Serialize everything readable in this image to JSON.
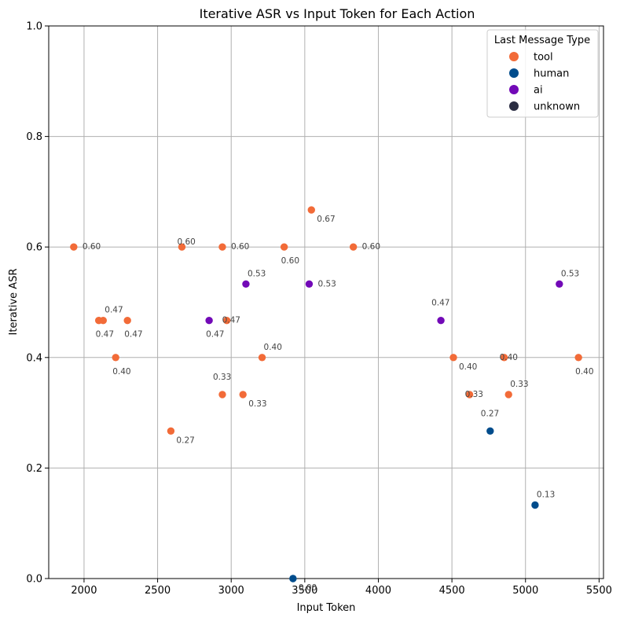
{
  "chart_data": {
    "type": "scatter",
    "title": "Iterative ASR vs Input Token for Each Action",
    "xlabel": "Input Token",
    "ylabel": "Iterative ASR",
    "xlim": [
      1760,
      5530
    ],
    "ylim": [
      0,
      1
    ],
    "xticks": [
      2000,
      2500,
      3000,
      3500,
      4000,
      4500,
      5000,
      5500
    ],
    "yticks": [
      0.0,
      0.2,
      0.4,
      0.6,
      0.8,
      1.0
    ],
    "grid": true,
    "legend": {
      "title": "Last Message Type",
      "placement": "top-right",
      "entries": [
        {
          "key": "tool",
          "label": "tool",
          "color": "#f26b38"
        },
        {
          "key": "human",
          "label": "human",
          "color": "#004c8c"
        },
        {
          "key": "ai",
          "label": "ai",
          "color": "#7209b7"
        },
        {
          "key": "unknown",
          "label": "unknown",
          "color": "#2b2d42"
        }
      ]
    },
    "points": [
      {
        "x": 1930,
        "y": 0.6,
        "type": "tool",
        "label": "0.60",
        "lpos": "right"
      },
      {
        "x": 2100,
        "y": 0.467,
        "type": "tool",
        "label": "0.47",
        "lpos": "below"
      },
      {
        "x": 2130,
        "y": 0.467,
        "type": "tool",
        "label": "0.47",
        "lpos": "above-right"
      },
      {
        "x": 2215,
        "y": 0.4,
        "type": "tool",
        "label": "0.40",
        "lpos": "below"
      },
      {
        "x": 2295,
        "y": 0.467,
        "type": "tool",
        "label": "0.47",
        "lpos": "below"
      },
      {
        "x": 2590,
        "y": 0.267,
        "type": "tool",
        "label": "0.27",
        "lpos": "below-right"
      },
      {
        "x": 2665,
        "y": 0.6,
        "type": "tool",
        "label": "0.60",
        "lpos": "above-center"
      },
      {
        "x": 2850,
        "y": 0.467,
        "type": "ai",
        "label": "0.47",
        "lpos": "below"
      },
      {
        "x": 2940,
        "y": 0.6,
        "type": "tool",
        "label": "0.60",
        "lpos": "right"
      },
      {
        "x": 2940,
        "y": 0.333,
        "type": "tool",
        "label": "0.33",
        "lpos": "above"
      },
      {
        "x": 2970,
        "y": 0.467,
        "type": "tool",
        "label": "0.47",
        "lpos": "on"
      },
      {
        "x": 3080,
        "y": 0.333,
        "type": "tool",
        "label": "0.33",
        "lpos": "below-right"
      },
      {
        "x": 3100,
        "y": 0.533,
        "type": "ai",
        "label": "0.53",
        "lpos": "above-right"
      },
      {
        "x": 3210,
        "y": 0.4,
        "type": "tool",
        "label": "0.40",
        "lpos": "above-right"
      },
      {
        "x": 3360,
        "y": 0.6,
        "type": "tool",
        "label": "0.60",
        "lpos": "below"
      },
      {
        "x": 3420,
        "y": 0.0,
        "type": "human",
        "label": "0.00",
        "lpos": "below-right"
      },
      {
        "x": 3530,
        "y": 0.533,
        "type": "ai",
        "label": "0.53",
        "lpos": "right"
      },
      {
        "x": 3545,
        "y": 0.667,
        "type": "tool",
        "label": "0.67",
        "lpos": "below-right"
      },
      {
        "x": 3830,
        "y": 0.6,
        "type": "tool",
        "label": "0.60",
        "lpos": "right"
      },
      {
        "x": 4425,
        "y": 0.467,
        "type": "ai",
        "label": "0.47",
        "lpos": "above"
      },
      {
        "x": 4510,
        "y": 0.4,
        "type": "tool",
        "label": "0.40",
        "lpos": "below-right"
      },
      {
        "x": 4620,
        "y": 0.333,
        "type": "tool",
        "label": "0.33",
        "lpos": "on"
      },
      {
        "x": 4760,
        "y": 0.267,
        "type": "human",
        "label": "0.27",
        "lpos": "above"
      },
      {
        "x": 4855,
        "y": 0.4,
        "type": "tool",
        "label": "0.40",
        "lpos": "on"
      },
      {
        "x": 4885,
        "y": 0.333,
        "type": "tool",
        "label": "0.33",
        "lpos": "above-right"
      },
      {
        "x": 5065,
        "y": 0.133,
        "type": "human",
        "label": "0.13",
        "lpos": "above-right"
      },
      {
        "x": 5230,
        "y": 0.533,
        "type": "ai",
        "label": "0.53",
        "lpos": "above-right"
      },
      {
        "x": 5360,
        "y": 0.4,
        "type": "tool",
        "label": "0.40",
        "lpos": "below"
      }
    ]
  }
}
